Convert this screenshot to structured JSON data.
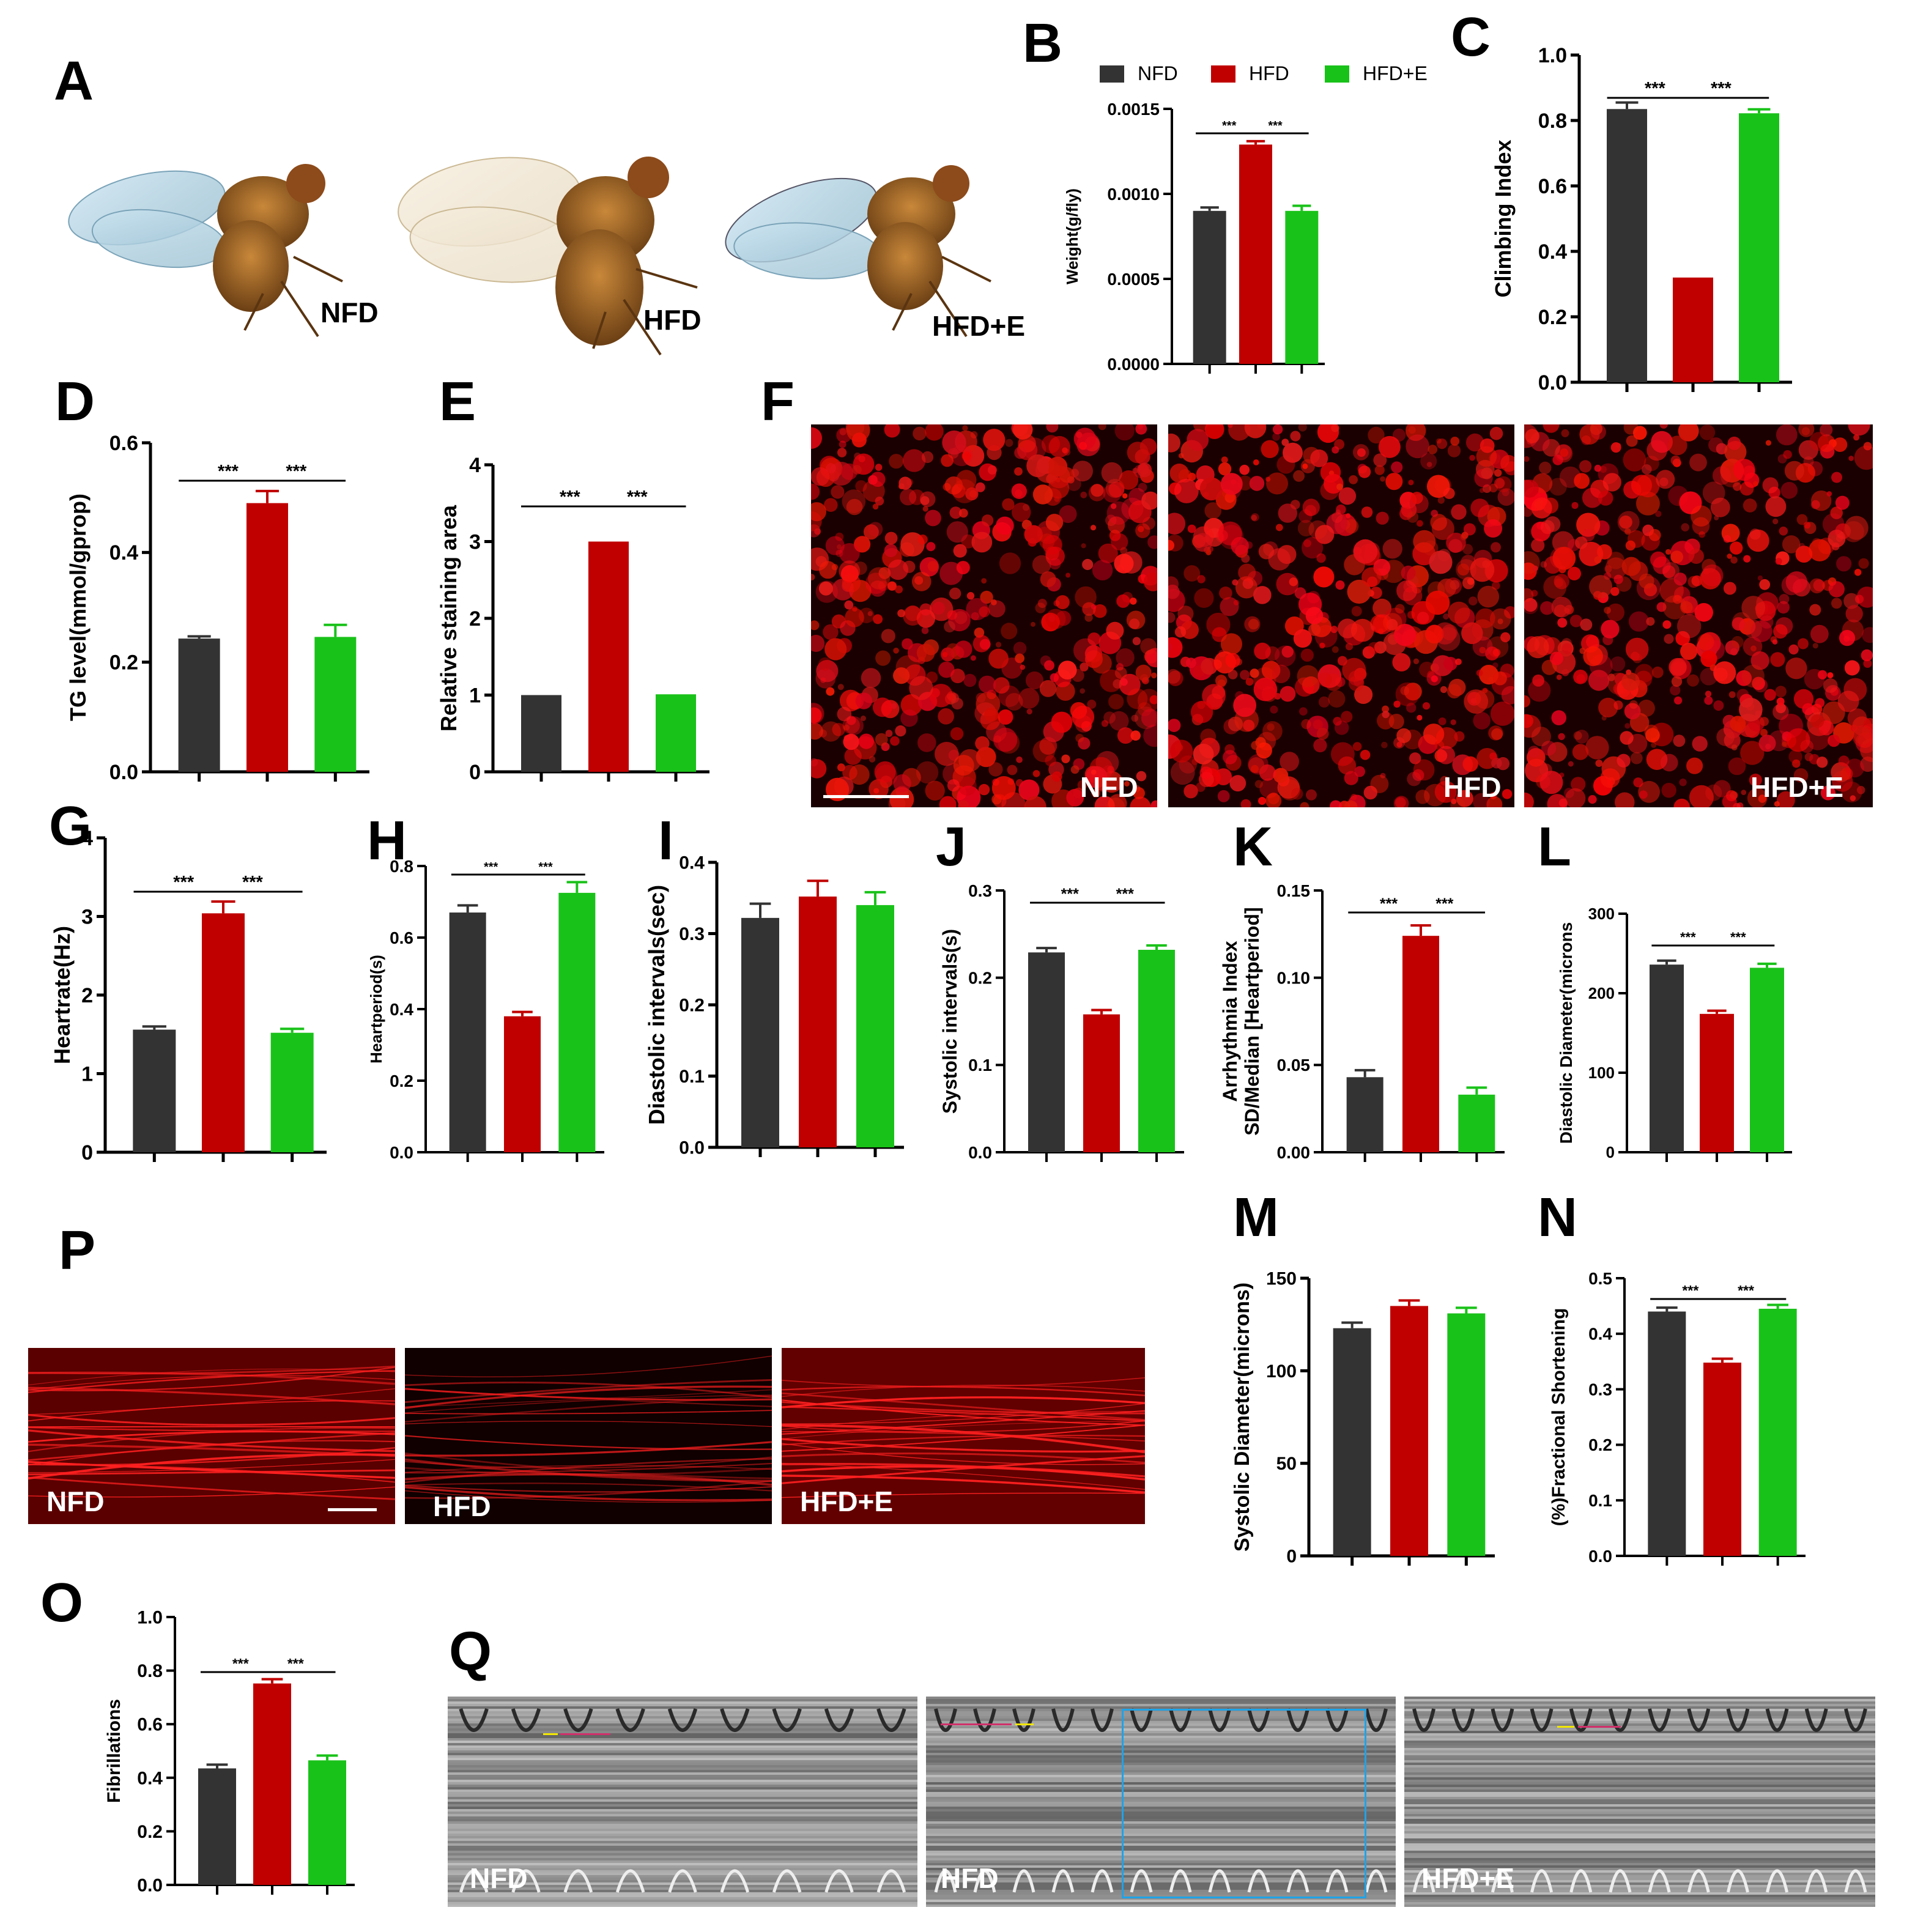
{
  "panels": {
    "A": "A",
    "B": "B",
    "C": "C",
    "D": "D",
    "E": "E",
    "F": "F",
    "G": "G",
    "H": "H",
    "I": "I",
    "J": "J",
    "K": "K",
    "L": "L",
    "M": "M",
    "N": "N",
    "O": "O",
    "P": "P",
    "Q": "Q"
  },
  "groups": [
    "NFD",
    "HFD",
    "HFD+E"
  ],
  "colors": {
    "NFD": "#333333",
    "HFD": "#c00000",
    "HFD+E": "#19c219"
  },
  "legend": [
    "NFD",
    "HFD",
    "HFD+E"
  ],
  "image_labels": {
    "A": [
      "NFD",
      "HFD",
      "HFD+E"
    ],
    "F": [
      "NFD",
      "HFD",
      "HFD+E"
    ],
    "P": [
      "NFD",
      "HFD",
      "HFD+E"
    ],
    "Q": [
      "NFD",
      "HFD",
      "HFD+E"
    ]
  },
  "chart_data": [
    {
      "id": "B",
      "type": "bar",
      "categories": [
        "NFD",
        "HFD",
        "HFD+E"
      ],
      "values": [
        0.0009,
        0.00129,
        0.0009
      ],
      "errors": [
        2e-05,
        2e-05,
        3e-05
      ],
      "ylabel": "Weight(g/fly)",
      "ylim": [
        0,
        0.0015
      ],
      "yticks": [
        "0.0000",
        "0.0005",
        "0.0010",
        "0.0015"
      ],
      "sig": [
        "***",
        "***"
      ]
    },
    {
      "id": "C",
      "type": "bar",
      "categories": [
        "NFD",
        "HFD",
        "HFD+E"
      ],
      "values": [
        0.835,
        0.32,
        0.822
      ],
      "errors": [
        0.02,
        0,
        0.012
      ],
      "ylabel": "Climbing Index",
      "ylim": [
        0,
        1.0
      ],
      "yticks": [
        "0.0",
        "0.2",
        "0.4",
        "0.6",
        "0.8",
        "1.0"
      ],
      "sig": [
        "***",
        "***"
      ]
    },
    {
      "id": "D",
      "type": "bar",
      "categories": [
        "NFD",
        "HFD",
        "HFD+E"
      ],
      "values": [
        0.243,
        0.49,
        0.246
      ],
      "errors": [
        0.004,
        0.022,
        0.022
      ],
      "ylabel": "TG level(mmol/gprop)",
      "ylim": [
        0,
        0.6
      ],
      "yticks": [
        "0.0",
        "0.2",
        "0.4",
        "0.6"
      ],
      "sig": [
        "***",
        "***"
      ]
    },
    {
      "id": "E",
      "type": "bar",
      "categories": [
        "NFD",
        "HFD",
        "HFD+E"
      ],
      "values": [
        1.0,
        3.0,
        1.01
      ],
      "errors": [
        0,
        0,
        0
      ],
      "ylabel": "Relative staining area",
      "ylim": [
        0,
        4
      ],
      "yticks": [
        "0",
        "1",
        "2",
        "3",
        "4"
      ],
      "sig": [
        "***",
        "***"
      ]
    },
    {
      "id": "G",
      "type": "bar",
      "categories": [
        "NFD",
        "HFD",
        "HFD+E"
      ],
      "values": [
        1.56,
        3.04,
        1.52
      ],
      "errors": [
        0.04,
        0.15,
        0.05
      ],
      "ylabel": "Heartrate(Hz)",
      "ylim": [
        0,
        4
      ],
      "yticks": [
        "0",
        "1",
        "2",
        "3",
        "4"
      ],
      "sig": [
        "***",
        "***"
      ]
    },
    {
      "id": "H",
      "type": "bar",
      "categories": [
        "NFD",
        "HFD",
        "HFD+E"
      ],
      "values": [
        0.67,
        0.38,
        0.725
      ],
      "errors": [
        0.02,
        0.012,
        0.03
      ],
      "ylabel": "Heartperiod(s)",
      "ylim": [
        0,
        0.8
      ],
      "yticks": [
        "0.0",
        "0.2",
        "0.4",
        "0.6",
        "0.8"
      ],
      "sig": [
        "***",
        "***"
      ]
    },
    {
      "id": "I",
      "type": "bar",
      "categories": [
        "NFD",
        "HFD",
        "HFD+E"
      ],
      "values": [
        0.322,
        0.352,
        0.34
      ],
      "errors": [
        0.02,
        0.022,
        0.018
      ],
      "ylabel": "Diastolic intervals(sec)",
      "ylim": [
        0,
        0.4
      ],
      "yticks": [
        "0.0",
        "0.1",
        "0.2",
        "0.3",
        "0.4"
      ],
      "sig": []
    },
    {
      "id": "J",
      "type": "bar",
      "categories": [
        "NFD",
        "HFD",
        "HFD+E"
      ],
      "values": [
        0.229,
        0.158,
        0.232
      ],
      "errors": [
        0.005,
        0.005,
        0.005
      ],
      "ylabel": "Systolic intervals(s)",
      "ylim": [
        0,
        0.3
      ],
      "yticks": [
        "0.0",
        "0.1",
        "0.2",
        "0.3"
      ],
      "sig": [
        "***",
        "***"
      ]
    },
    {
      "id": "K",
      "type": "bar",
      "categories": [
        "NFD",
        "HFD",
        "HFD+E"
      ],
      "values": [
        0.043,
        0.124,
        0.033
      ],
      "errors": [
        0.004,
        0.006,
        0.004
      ],
      "ylabel": "Arrhythmia Index",
      "ylabel2": "SD/Median [Heartperiod]",
      "ylim": [
        0,
        0.15
      ],
      "yticks": [
        "0.00",
        "0.05",
        "0.10",
        "0.15"
      ],
      "sig": [
        "***",
        "***"
      ]
    },
    {
      "id": "L",
      "type": "bar",
      "categories": [
        "NFD",
        "HFD",
        "HFD+E"
      ],
      "values": [
        236,
        174,
        232
      ],
      "errors": [
        5,
        4,
        5
      ],
      "ylabel": "Diastolic Diameter(microns",
      "ylim": [
        0,
        300
      ],
      "yticks": [
        "0",
        "100",
        "200",
        "300"
      ],
      "sig": [
        "***",
        "***"
      ]
    },
    {
      "id": "M",
      "type": "bar",
      "categories": [
        "NFD",
        "HFD",
        "HFD+E"
      ],
      "values": [
        123,
        135,
        131
      ],
      "errors": [
        3,
        3,
        3
      ],
      "ylabel": "Systolic Diameter(microns)",
      "ylim": [
        0,
        150
      ],
      "yticks": [
        "0",
        "50",
        "100",
        "150"
      ],
      "sig": []
    },
    {
      "id": "N",
      "type": "bar",
      "categories": [
        "NFD",
        "HFD",
        "HFD+E"
      ],
      "values": [
        0.44,
        0.348,
        0.445
      ],
      "errors": [
        0.007,
        0.007,
        0.007
      ],
      "ylabel": "(%)Fractional Shortening",
      "ylim": [
        0,
        0.5
      ],
      "yticks": [
        "0.0",
        "0.1",
        "0.2",
        "0.3",
        "0.4",
        "0.5"
      ],
      "sig": [
        "***",
        "***"
      ]
    },
    {
      "id": "O",
      "type": "bar",
      "categories": [
        "NFD",
        "HFD",
        "HFD+E"
      ],
      "values": [
        0.435,
        0.752,
        0.465
      ],
      "errors": [
        0.014,
        0.016,
        0.018
      ],
      "ylabel": "Fibrillations",
      "ylim": [
        0,
        1.0
      ],
      "yticks": [
        "0.0",
        "0.2",
        "0.4",
        "0.6",
        "0.8",
        "1.0"
      ],
      "sig": [
        "***",
        "***"
      ]
    }
  ]
}
